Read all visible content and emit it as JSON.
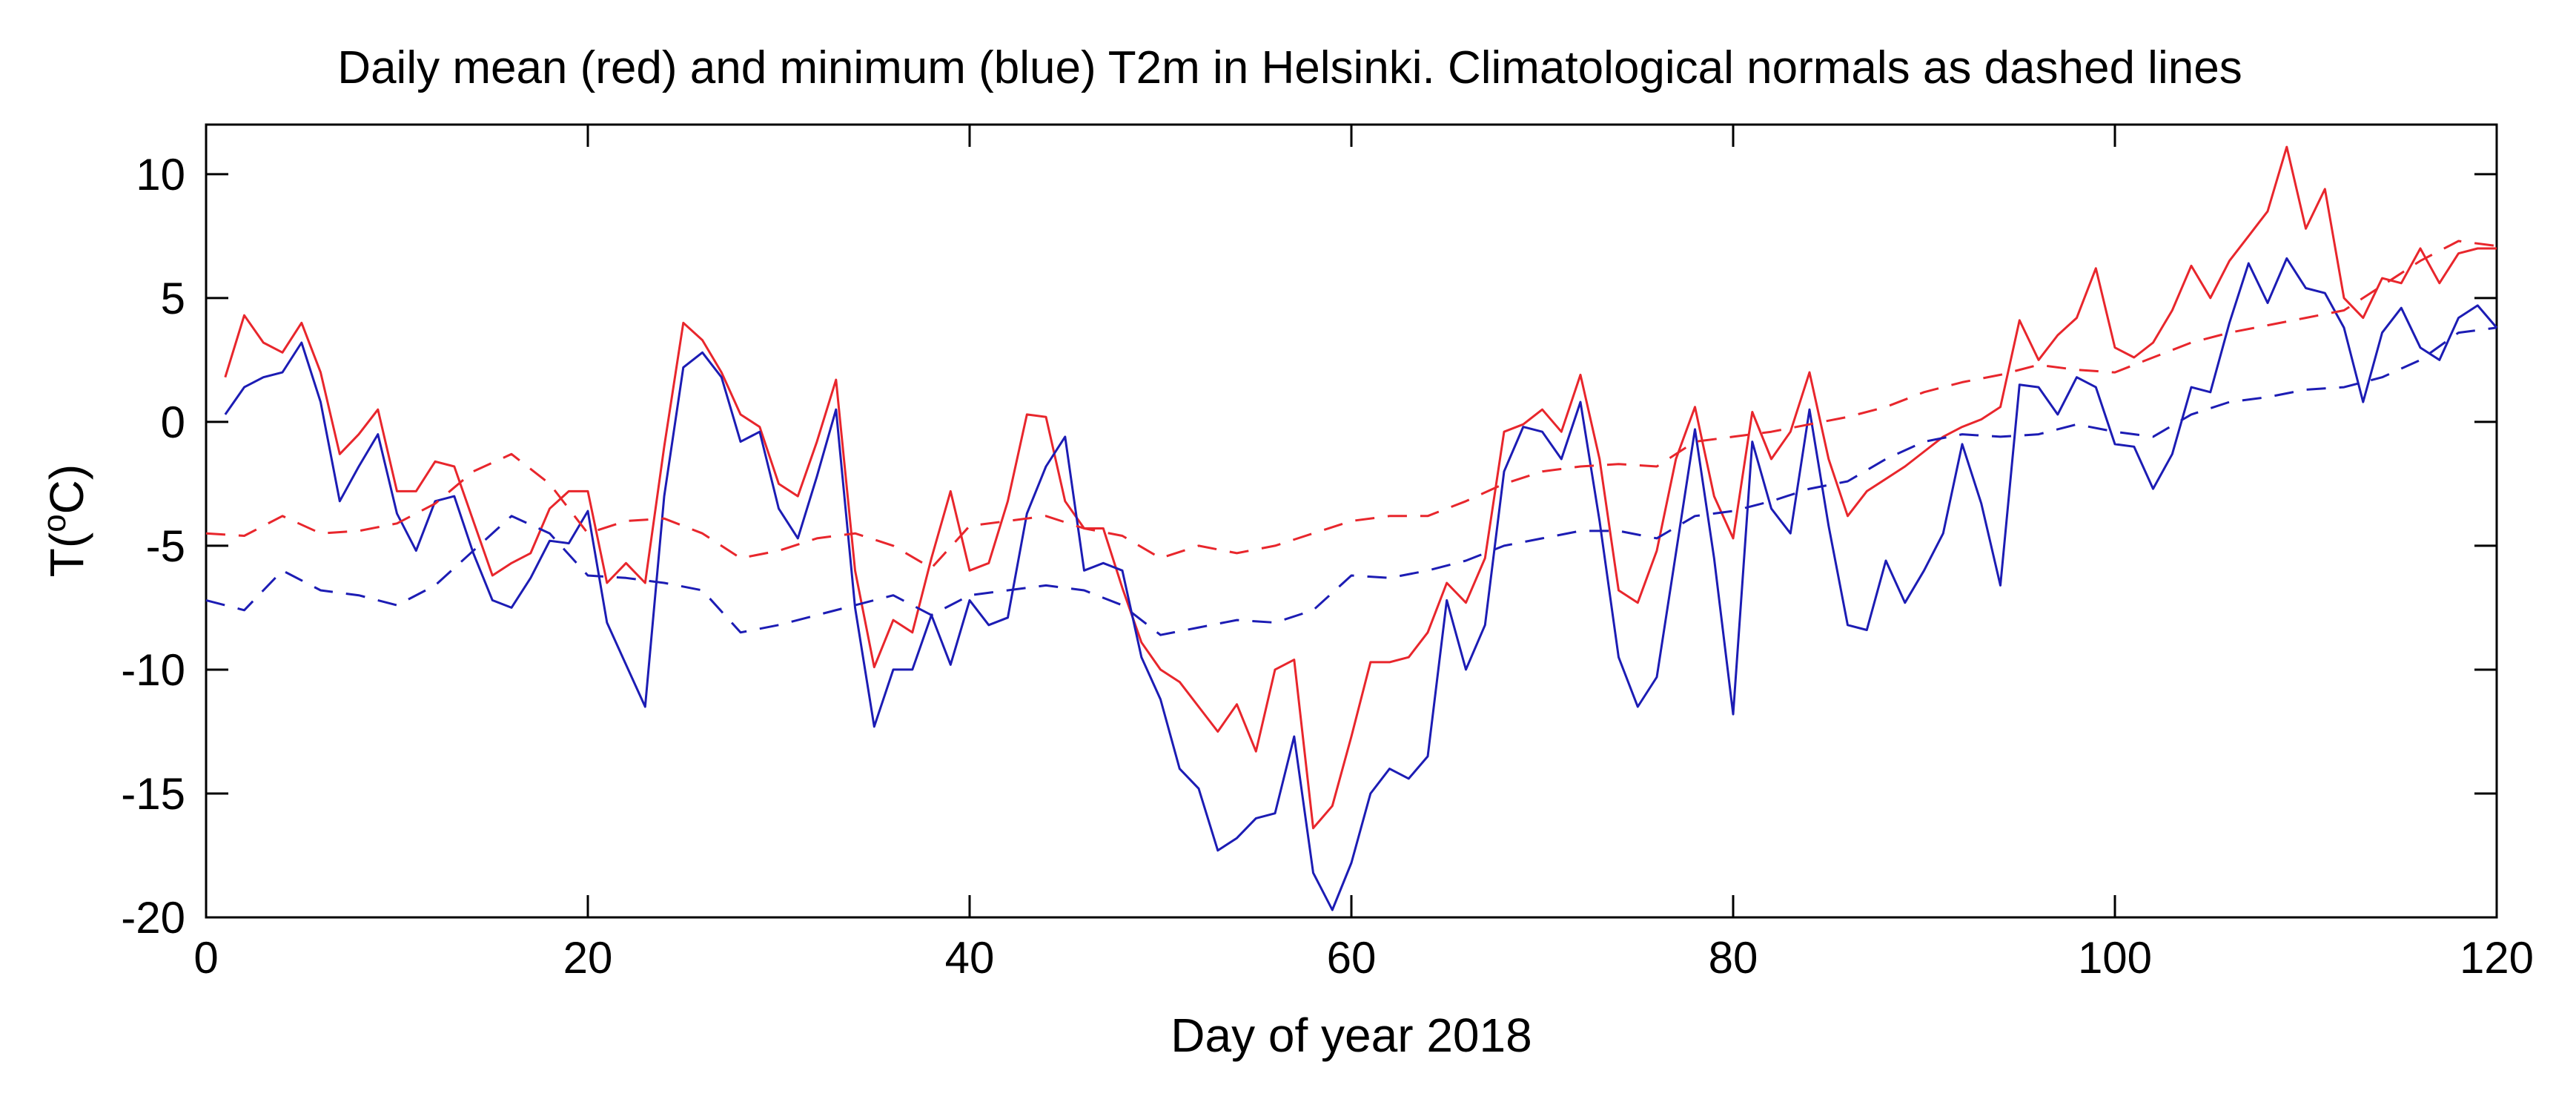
{
  "chart_data": {
    "type": "line",
    "title": "Daily mean (red) and minimum (blue) T2m in Helsinki. Climatological normals as dashed lines",
    "xlabel": "Day of year 2018",
    "ylabel_prefix": "T(",
    "ylabel_sup": "o",
    "ylabel_suffix": "C)",
    "xlim": [
      0,
      120
    ],
    "ylim": [
      -20,
      12
    ],
    "xticks": [
      0,
      20,
      40,
      60,
      80,
      100,
      120
    ],
    "yticks": [
      10,
      5,
      0,
      -5,
      -10,
      -15,
      -20
    ],
    "grid": false,
    "series": [
      {
        "name": "Daily mean T2m",
        "color": "#e8262c",
        "dash": "solid",
        "x": [
          1,
          2,
          3,
          4,
          5,
          6,
          7,
          8,
          9,
          10,
          11,
          12,
          13,
          14,
          15,
          16,
          17,
          18,
          19,
          20,
          21,
          22,
          23,
          24,
          25,
          26,
          27,
          28,
          29,
          30,
          31,
          32,
          33,
          34,
          35,
          36,
          37,
          38,
          39,
          40,
          41,
          42,
          43,
          44,
          45,
          46,
          47,
          48,
          49,
          50,
          51,
          52,
          53,
          54,
          55,
          56,
          57,
          58,
          59,
          60,
          61,
          62,
          63,
          64,
          65,
          66,
          67,
          68,
          69,
          70,
          71,
          72,
          73,
          74,
          75,
          76,
          77,
          78,
          79,
          80,
          81,
          82,
          83,
          84,
          85,
          86,
          87,
          88,
          89,
          90,
          91,
          92,
          93,
          94,
          95,
          96,
          97,
          98,
          99,
          100,
          101,
          102,
          103,
          104,
          105,
          106,
          107,
          108,
          109,
          110,
          111,
          112,
          113,
          114,
          115,
          116,
          117,
          118,
          119,
          120
        ],
        "values": [
          1.8,
          4.3,
          3.2,
          2.8,
          4.0,
          2.0,
          -1.3,
          -0.5,
          0.5,
          -2.8,
          -2.8,
          -1.6,
          -1.8,
          -4.0,
          -6.2,
          -5.7,
          -5.3,
          -3.5,
          -2.8,
          -2.8,
          -6.5,
          -5.7,
          -6.5,
          -1.0,
          4.0,
          3.3,
          2.0,
          0.3,
          -0.2,
          -2.5,
          -3.0,
          -0.8,
          1.7,
          -6.0,
          -9.9,
          -8.0,
          -8.5,
          -5.5,
          -2.8,
          -6.0,
          -5.7,
          -3.2,
          0.3,
          0.2,
          -3.2,
          -4.3,
          -4.3,
          -6.7,
          -8.9,
          -10.0,
          -10.5,
          -11.5,
          -12.5,
          -11.4,
          -13.3,
          -10.0,
          -9.6,
          -16.4,
          -15.5,
          -12.7,
          -9.7,
          -9.7,
          -9.5,
          -8.5,
          -6.5,
          -7.3,
          -5.5,
          -0.4,
          -0.1,
          0.5,
          -0.4,
          1.9,
          -1.5,
          -6.8,
          -7.3,
          -5.2,
          -1.5,
          0.6,
          -3.0,
          -4.7,
          0.4,
          -1.5,
          -0.4,
          2.0,
          -1.5,
          -3.8,
          -2.8,
          -2.3,
          -1.8,
          -1.2,
          -0.6,
          -0.2,
          0.1,
          0.6,
          4.1,
          2.5,
          3.5,
          4.2,
          6.2,
          3.0,
          2.6,
          3.2,
          4.5,
          6.3,
          5.0,
          6.5,
          7.5,
          8.5,
          11.1,
          7.8,
          9.4,
          5.0,
          4.2,
          5.8,
          5.6,
          7.0,
          5.6,
          6.8,
          7.0,
          7.0
        ]
      },
      {
        "name": "Daily minimum T2m",
        "color": "#1c1cb4",
        "dash": "solid",
        "x": [
          1,
          2,
          3,
          4,
          5,
          6,
          7,
          8,
          9,
          10,
          11,
          12,
          13,
          14,
          15,
          16,
          17,
          18,
          19,
          20,
          21,
          22,
          23,
          24,
          25,
          26,
          27,
          28,
          29,
          30,
          31,
          32,
          33,
          34,
          35,
          36,
          37,
          38,
          39,
          40,
          41,
          42,
          43,
          44,
          45,
          46,
          47,
          48,
          49,
          50,
          51,
          52,
          53,
          54,
          55,
          56,
          57,
          58,
          59,
          60,
          61,
          62,
          63,
          64,
          65,
          66,
          67,
          68,
          69,
          70,
          71,
          72,
          73,
          74,
          75,
          76,
          77,
          78,
          79,
          80,
          81,
          82,
          83,
          84,
          85,
          86,
          87,
          88,
          89,
          90,
          91,
          92,
          93,
          94,
          95,
          96,
          97,
          98,
          99,
          100,
          101,
          102,
          103,
          104,
          105,
          106,
          107,
          108,
          109,
          110,
          111,
          112,
          113,
          114,
          115,
          116,
          117,
          118,
          119,
          120
        ],
        "values": [
          0.3,
          1.4,
          1.8,
          2.0,
          3.2,
          0.8,
          -3.2,
          -1.8,
          -0.5,
          -3.7,
          -5.2,
          -3.2,
          -3.0,
          -5.3,
          -7.2,
          -7.5,
          -6.3,
          -4.8,
          -4.9,
          -3.6,
          -8.1,
          -9.8,
          -11.5,
          -3.0,
          2.2,
          2.8,
          1.8,
          -0.8,
          -0.4,
          -3.5,
          -4.7,
          -2.2,
          0.5,
          -7.5,
          -12.3,
          -10.0,
          -10.0,
          -7.8,
          -9.8,
          -7.2,
          -8.2,
          -7.9,
          -3.7,
          -1.8,
          -0.6,
          -6.0,
          -5.7,
          -6.0,
          -9.5,
          -11.2,
          -14.0,
          -14.8,
          -17.3,
          -16.8,
          -16.0,
          -15.8,
          -12.7,
          -18.2,
          -19.7,
          -17.8,
          -15.0,
          -14.0,
          -14.4,
          -13.5,
          -7.2,
          -10.0,
          -8.2,
          -2.0,
          -0.2,
          -0.4,
          -1.5,
          0.8,
          -4.0,
          -9.5,
          -11.5,
          -10.3,
          -5.3,
          -0.3,
          -5.5,
          -11.8,
          -0.8,
          -3.5,
          -4.5,
          0.5,
          -4.2,
          -8.2,
          -8.4,
          -5.6,
          -7.3,
          -6.0,
          -4.5,
          -0.9,
          -3.3,
          -6.6,
          1.5,
          1.4,
          0.3,
          1.8,
          1.4,
          -0.9,
          -1.0,
          -2.7,
          -1.3,
          1.4,
          1.2,
          4.0,
          6.4,
          4.8,
          6.6,
          5.4,
          5.2,
          3.8,
          0.8,
          3.6,
          4.6,
          3.0,
          2.5,
          4.2,
          4.7,
          3.8
        ]
      },
      {
        "name": "Climatological normal mean",
        "color": "#e8262c",
        "dash": "dashed",
        "x": [
          0,
          2,
          4,
          6,
          8,
          10,
          12,
          14,
          16,
          18,
          20,
          22,
          24,
          26,
          28,
          30,
          32,
          34,
          36,
          38,
          40,
          42,
          44,
          46,
          48,
          50,
          52,
          54,
          56,
          58,
          60,
          62,
          64,
          66,
          68,
          70,
          72,
          74,
          76,
          78,
          80,
          82,
          84,
          86,
          88,
          90,
          92,
          94,
          96,
          98,
          100,
          102,
          104,
          106,
          108,
          110,
          112,
          114,
          116,
          118,
          120
        ],
        "values": [
          -4.5,
          -4.6,
          -3.8,
          -4.5,
          -4.4,
          -4.1,
          -3.3,
          -2.0,
          -1.3,
          -2.5,
          -4.5,
          -4.0,
          -3.9,
          -4.5,
          -5.5,
          -5.2,
          -4.7,
          -4.5,
          -5.0,
          -5.9,
          -4.2,
          -4.0,
          -3.8,
          -4.3,
          -4.6,
          -5.5,
          -5.0,
          -5.3,
          -5.0,
          -4.5,
          -4.0,
          -3.8,
          -3.8,
          -3.2,
          -2.5,
          -2.0,
          -1.8,
          -1.7,
          -1.8,
          -0.8,
          -0.6,
          -0.4,
          -0.1,
          0.2,
          0.6,
          1.2,
          1.6,
          1.9,
          2.3,
          2.1,
          2.0,
          2.6,
          3.2,
          3.6,
          3.9,
          4.2,
          4.5,
          5.5,
          6.5,
          7.3,
          7.1
        ]
      },
      {
        "name": "Climatological normal minimum",
        "color": "#1c1cb4",
        "dash": "dashed",
        "x": [
          0,
          2,
          4,
          6,
          8,
          10,
          12,
          14,
          16,
          18,
          20,
          22,
          24,
          26,
          28,
          30,
          32,
          34,
          36,
          38,
          40,
          42,
          44,
          46,
          48,
          50,
          52,
          54,
          56,
          58,
          60,
          62,
          64,
          66,
          68,
          70,
          72,
          74,
          76,
          78,
          80,
          82,
          84,
          86,
          88,
          90,
          92,
          94,
          96,
          98,
          100,
          102,
          104,
          106,
          108,
          110,
          112,
          114,
          116,
          118,
          120
        ],
        "values": [
          -7.2,
          -7.6,
          -6.0,
          -6.8,
          -7.0,
          -7.4,
          -6.6,
          -5.2,
          -3.8,
          -4.5,
          -6.2,
          -6.3,
          -6.5,
          -6.8,
          -8.5,
          -8.2,
          -7.8,
          -7.4,
          -7.0,
          -7.8,
          -7.0,
          -6.8,
          -6.6,
          -6.8,
          -7.4,
          -8.6,
          -8.3,
          -8.0,
          -8.1,
          -7.6,
          -6.2,
          -6.3,
          -6.0,
          -5.6,
          -5.0,
          -4.7,
          -4.4,
          -4.4,
          -4.7,
          -3.8,
          -3.6,
          -3.2,
          -2.7,
          -2.4,
          -1.5,
          -0.8,
          -0.5,
          -0.6,
          -0.5,
          -0.1,
          -0.4,
          -0.6,
          0.3,
          0.8,
          1.0,
          1.3,
          1.4,
          1.8,
          2.5,
          3.6,
          3.8
        ]
      }
    ]
  }
}
